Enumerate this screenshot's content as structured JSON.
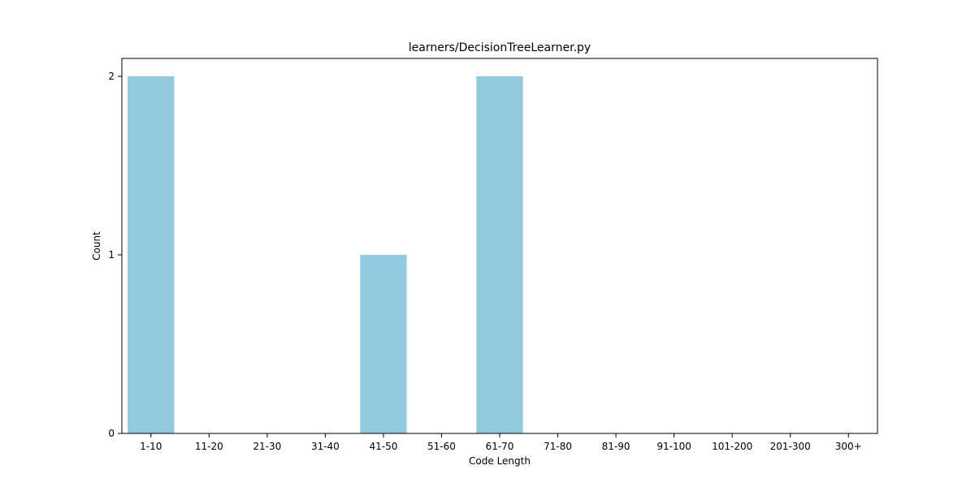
{
  "chart_data": {
    "type": "bar",
    "title": "learners/DecisionTreeLearner.py",
    "xlabel": "Code Length",
    "ylabel": "Count",
    "categories": [
      "1-10",
      "11-20",
      "21-30",
      "31-40",
      "41-50",
      "51-60",
      "61-70",
      "71-80",
      "81-90",
      "91-100",
      "101-200",
      "201-300",
      "300+"
    ],
    "values": [
      2,
      0,
      0,
      0,
      1,
      0,
      2,
      0,
      0,
      0,
      0,
      0,
      0
    ],
    "ylim": [
      0,
      2.1
    ],
    "yticks": [
      0,
      1,
      2
    ],
    "bar_color": "#92c9de",
    "grid": false
  }
}
